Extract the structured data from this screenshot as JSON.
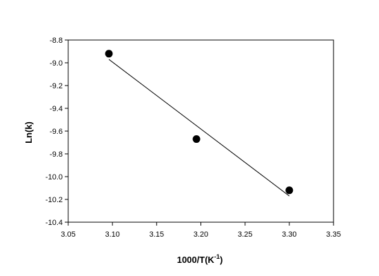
{
  "chart_data": {
    "type": "scatter",
    "title": "",
    "xlabel": "1000/T(K",
    "xlabel_sup": "-1",
    "xlabel_suffix": ")",
    "ylabel": "Ln(k)",
    "xlim": [
      3.05,
      3.35
    ],
    "ylim": [
      -10.4,
      -8.8
    ],
    "x_ticks": [
      "3.05",
      "3.10",
      "3.15",
      "3.20",
      "3.25",
      "3.30",
      "3.35"
    ],
    "y_ticks": [
      "-8.8",
      "-9.0",
      "-9.2",
      "-9.4",
      "-9.6",
      "-9.8",
      "-10.0",
      "-10.2",
      "-10.4"
    ],
    "grid": false,
    "legend": "none",
    "series": [
      {
        "x": [
          3.096,
          3.195,
          3.3
        ],
        "y": [
          -8.92,
          -9.67,
          -10.12
        ]
      }
    ],
    "fit_line": {
      "x": [
        3.096,
        3.3
      ],
      "y": [
        -8.97,
        -10.17
      ]
    },
    "colors": {
      "marker": "#000000",
      "line": "#000000",
      "axis": "#000000"
    }
  }
}
